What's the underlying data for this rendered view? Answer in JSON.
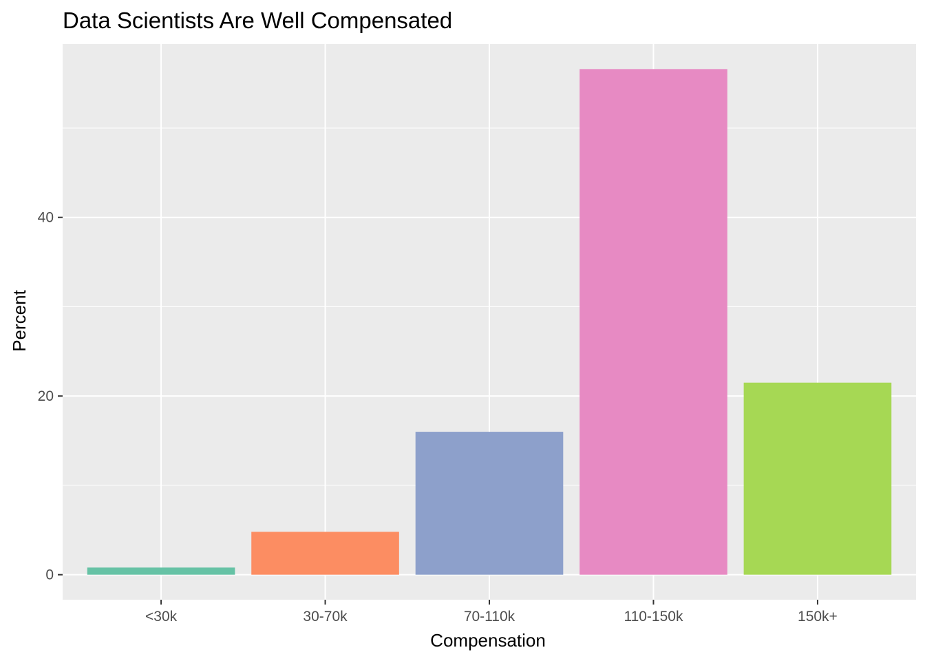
{
  "chart_data": {
    "type": "bar",
    "title": "Data Scientists Are Well Compensated",
    "xlabel": "Compensation",
    "ylabel": "Percent",
    "categories": [
      "<30k",
      "30-70k",
      "70-110k",
      "110-150k",
      "150k+"
    ],
    "values": [
      0.8,
      4.8,
      16.0,
      56.6,
      21.5
    ],
    "colors": [
      "#66C2A5",
      "#FC8D62",
      "#8DA0CB",
      "#E78AC3",
      "#A6D854"
    ],
    "yticks": [
      0,
      20,
      40
    ],
    "ylim": [
      -2.8,
      59.4
    ],
    "grid": true,
    "legend": "none",
    "panel_background": "#EBEBEB",
    "grid_color": "#FFFFFF"
  }
}
